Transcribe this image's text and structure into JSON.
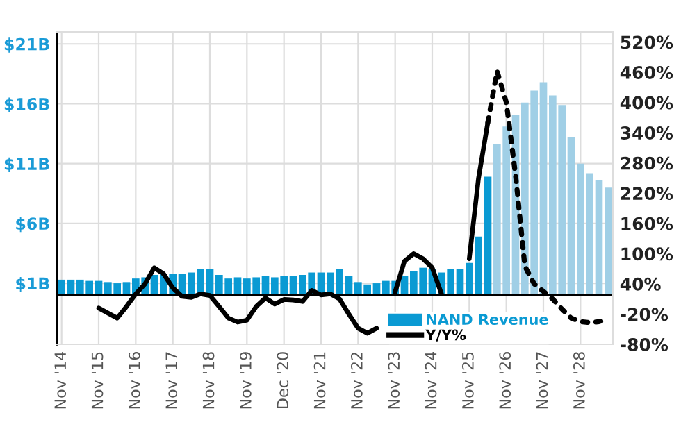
{
  "chart_data": {
    "type": "bar",
    "categories": [
      "Nov '14",
      null,
      null,
      null,
      "Nov '15",
      null,
      null,
      null,
      "Nov '16",
      null,
      null,
      null,
      "Nov '17",
      null,
      null,
      null,
      "Nov '18",
      null,
      null,
      null,
      "Nov '19",
      null,
      null,
      null,
      "Dec '20",
      null,
      null,
      null,
      "Nov '21",
      null,
      null,
      null,
      "Nov '22",
      null,
      null,
      null,
      "Nov '23",
      null,
      null,
      null,
      "Nov '24",
      null,
      null,
      null,
      "Nov '25",
      null,
      null,
      null,
      "Nov '26",
      null,
      null,
      null,
      "Nov '27",
      null,
      null,
      null,
      "Nov '28",
      null,
      null,
      null
    ],
    "series": [
      {
        "name": "NAND Revenue",
        "color": "#0a9ad3",
        "values": [
          1.3,
          1.3,
          1.3,
          1.2,
          1.2,
          1.1,
          1.0,
          1.1,
          1.4,
          1.5,
          1.7,
          1.8,
          1.8,
          1.8,
          1.9,
          2.2,
          2.2,
          1.7,
          1.4,
          1.5,
          1.4,
          1.5,
          1.6,
          1.5,
          1.6,
          1.6,
          1.7,
          1.9,
          1.9,
          1.9,
          2.2,
          1.6,
          1.1,
          0.9,
          1.0,
          1.2,
          1.2,
          1.6,
          2.0,
          2.3,
          2.2,
          1.9,
          2.2,
          2.2,
          2.7,
          4.9,
          9.9,
          null,
          null,
          null,
          null,
          null,
          null,
          null,
          null,
          null,
          null,
          null,
          null,
          null
        ]
      },
      {
        "color": "#a0cfe6",
        "values": [
          null,
          null,
          null,
          null,
          null,
          null,
          null,
          null,
          null,
          null,
          null,
          null,
          null,
          null,
          null,
          null,
          null,
          null,
          null,
          null,
          null,
          null,
          null,
          null,
          null,
          null,
          null,
          null,
          null,
          null,
          null,
          null,
          null,
          null,
          null,
          null,
          null,
          null,
          null,
          null,
          null,
          null,
          null,
          null,
          null,
          null,
          null,
          12.6,
          14.1,
          15.1,
          16.1,
          17.1,
          17.8,
          16.7,
          15.9,
          13.2,
          11.0,
          10.2,
          9.6,
          9.0
        ]
      },
      {
        "name": "Y/Y%",
        "type": "line",
        "axis": "y2",
        "color": "#000000",
        "line_style": "solid",
        "values": [
          null,
          null,
          null,
          null,
          -8,
          -18,
          -28,
          -5,
          20,
          40,
          72,
          60,
          32,
          15,
          13,
          20,
          17,
          -5,
          -28,
          -36,
          -32,
          -5,
          12,
          0,
          9,
          8,
          5,
          27,
          18,
          20,
          10,
          -20,
          -48,
          -58,
          -48,
          null,
          24,
          85,
          100,
          90,
          72,
          20,
          null,
          null,
          90,
          250,
          360,
          null,
          null,
          null,
          null,
          null,
          null,
          null,
          null,
          null,
          null,
          null,
          null,
          null
        ]
      },
      {
        "type": "line",
        "axis": "y2",
        "color": "#000000",
        "line_style": "dotted",
        "values": [
          null,
          null,
          null,
          null,
          null,
          null,
          null,
          null,
          null,
          null,
          null,
          null,
          null,
          null,
          null,
          null,
          null,
          null,
          null,
          null,
          null,
          null,
          null,
          null,
          null,
          null,
          null,
          null,
          null,
          null,
          null,
          null,
          null,
          null,
          null,
          null,
          null,
          null,
          null,
          null,
          null,
          null,
          null,
          null,
          null,
          null,
          360,
          462,
          400,
          255,
          75,
          40,
          25,
          10,
          -10,
          -28,
          -35,
          -37,
          -35,
          -30
        ]
      }
    ],
    "ylim": [
      -4.1,
      22
    ],
    "yticks": [
      {
        "value": 1,
        "label": "$1B"
      },
      {
        "value": 6,
        "label": "$6B"
      },
      {
        "value": 11,
        "label": "$11B"
      },
      {
        "value": 16,
        "label": "$16B"
      },
      {
        "value": 21,
        "label": "$21B"
      }
    ],
    "y2lim": [
      -80,
      540
    ],
    "y2ticks": [
      {
        "value": -80,
        "label": "-80%"
      },
      {
        "value": -20,
        "label": "-20%"
      },
      {
        "value": 40,
        "label": "40%"
      },
      {
        "value": 100,
        "label": "100%"
      },
      {
        "value": 160,
        "label": "160%"
      },
      {
        "value": 220,
        "label": "220%"
      },
      {
        "value": 280,
        "label": "280%"
      },
      {
        "value": 340,
        "label": "340%"
      },
      {
        "value": 400,
        "label": "400%"
      },
      {
        "value": 460,
        "label": "460%"
      },
      {
        "value": 520,
        "label": "520%"
      }
    ],
    "ref_lines": [
      {
        "axis": "y",
        "value": 0,
        "color": "#000000"
      }
    ],
    "grid": true,
    "legend": "bottom"
  }
}
